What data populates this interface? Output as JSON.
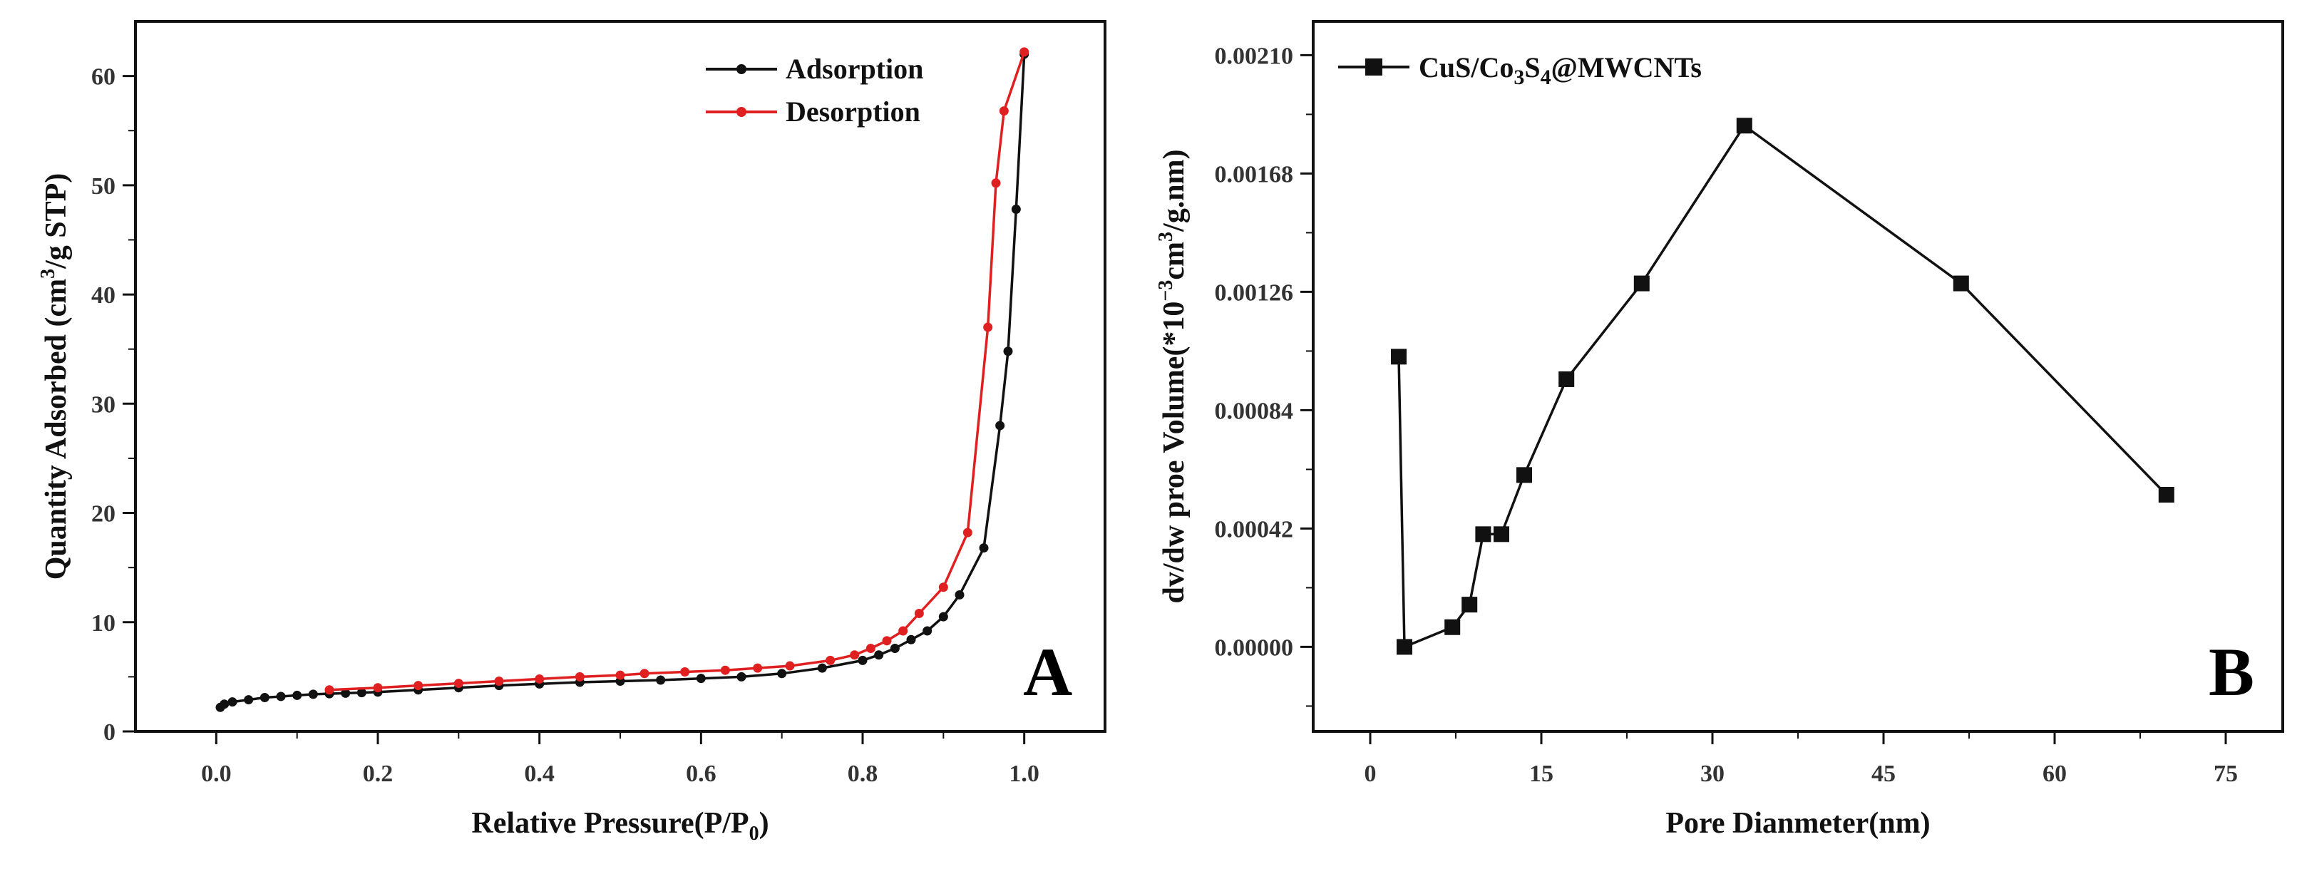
{
  "chart_data": [
    {
      "panel": "A",
      "type": "line",
      "xlabel": "Relative Pressure(P/P0)",
      "ylabel": "Quantity Adsorbed (cm3/g STP)",
      "xlim": [
        -0.1,
        1.1
      ],
      "ylim": [
        0,
        65
      ],
      "xticks": [
        0.0,
        0.2,
        0.4,
        0.6,
        0.8,
        1.0
      ],
      "xtick_labels": [
        "0.0",
        "0.2",
        "0.4",
        "0.6",
        "0.8",
        "1.0"
      ],
      "yticks": [
        0,
        10,
        20,
        30,
        40,
        50,
        60
      ],
      "ytick_labels": [
        "0",
        "10",
        "20",
        "30",
        "40",
        "50",
        "60"
      ],
      "legend_position": "top-right",
      "series": [
        {
          "name": "Adsorption",
          "color": "#111111",
          "x": [
            0.005,
            0.01,
            0.02,
            0.04,
            0.06,
            0.08,
            0.1,
            0.12,
            0.14,
            0.16,
            0.18,
            0.2,
            0.25,
            0.3,
            0.35,
            0.4,
            0.45,
            0.5,
            0.55,
            0.6,
            0.65,
            0.7,
            0.75,
            0.8,
            0.82,
            0.84,
            0.86,
            0.88,
            0.9,
            0.92,
            0.95,
            0.97,
            0.98,
            0.99,
            1.0
          ],
          "y": [
            2.2,
            2.5,
            2.7,
            2.9,
            3.1,
            3.2,
            3.3,
            3.4,
            3.45,
            3.5,
            3.55,
            3.6,
            3.8,
            4.0,
            4.2,
            4.35,
            4.5,
            4.6,
            4.7,
            4.85,
            5.0,
            5.3,
            5.8,
            6.5,
            7.0,
            7.6,
            8.4,
            9.2,
            10.5,
            12.5,
            16.8,
            28.0,
            34.8,
            47.8,
            62.0
          ]
        },
        {
          "name": "Desorption",
          "color": "#e02020",
          "x": [
            0.14,
            0.2,
            0.25,
            0.3,
            0.35,
            0.4,
            0.45,
            0.5,
            0.53,
            0.58,
            0.63,
            0.67,
            0.71,
            0.76,
            0.79,
            0.81,
            0.83,
            0.85,
            0.87,
            0.9,
            0.93,
            0.955,
            0.965,
            0.975,
            1.0
          ],
          "y": [
            3.8,
            4.0,
            4.2,
            4.4,
            4.6,
            4.8,
            5.0,
            5.15,
            5.3,
            5.45,
            5.6,
            5.8,
            6.0,
            6.5,
            7.0,
            7.6,
            8.3,
            9.2,
            10.8,
            13.2,
            18.2,
            37.0,
            50.2,
            56.8,
            62.2
          ]
        }
      ],
      "annotation": "A"
    },
    {
      "panel": "B",
      "type": "line",
      "xlabel": "Pore Dianmeter(nm)",
      "ylabel": "dv/dw proe Volume(*10−3cm3/g.nm)",
      "xlim": [
        -5,
        80
      ],
      "ylim": [
        -0.0003,
        0.00222
      ],
      "xticks": [
        0,
        15,
        30,
        45,
        60,
        75
      ],
      "xtick_labels": [
        "0",
        "15",
        "30",
        "45",
        "60",
        "75"
      ],
      "yticks": [
        0.0,
        0.00042,
        0.00084,
        0.00126,
        0.00168,
        0.0021
      ],
      "ytick_labels": [
        "0.00000",
        "0.00042",
        "0.00084",
        "0.00126",
        "0.00168",
        "0.00210"
      ],
      "legend_position": "top-left",
      "series": [
        {
          "name": "CuS/Co3S4@MWCNTs",
          "color": "#111111",
          "marker": "square",
          "x": [
            2.5,
            3.0,
            7.2,
            8.7,
            9.9,
            11.5,
            13.5,
            17.2,
            23.8,
            32.8,
            51.8,
            69.8
          ],
          "y": [
            0.00103,
            0.0,
            7e-05,
            0.00015,
            0.0004,
            0.0004,
            0.00061,
            0.00095,
            0.00129,
            0.00185,
            0.00129,
            0.00054
          ]
        }
      ],
      "annotation": "B"
    }
  ]
}
